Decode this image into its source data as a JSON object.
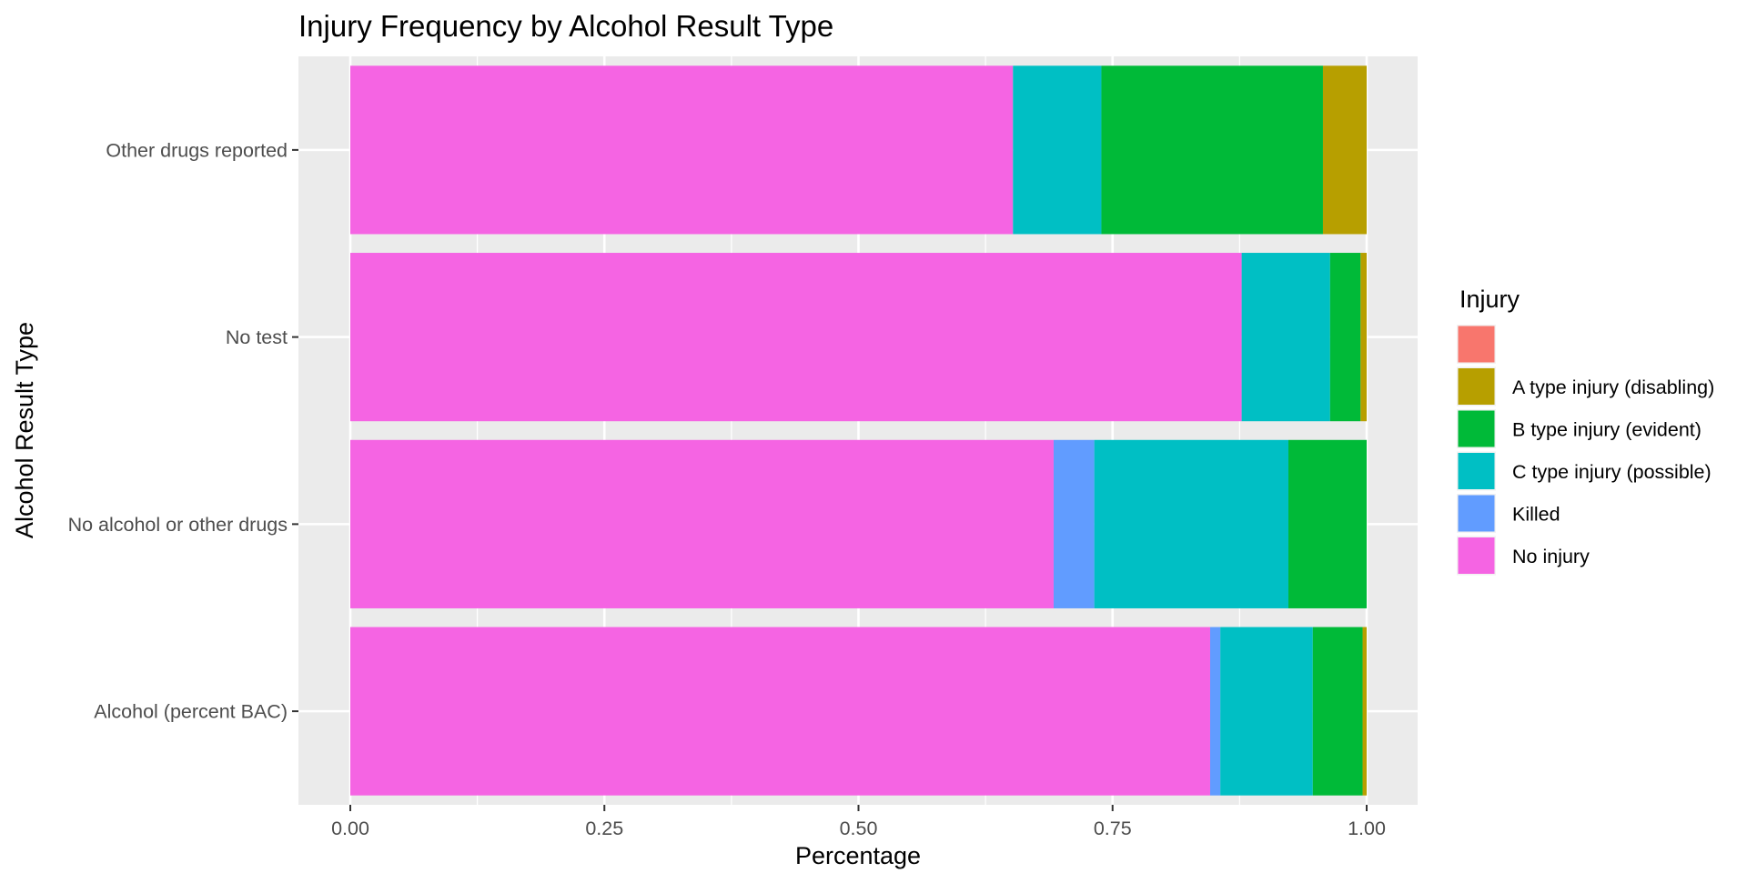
{
  "chart_data": {
    "type": "bar",
    "orientation": "horizontal",
    "stacked": "fill",
    "title": "Injury Frequency by Alcohol Result Type",
    "xlabel": "Percentage",
    "ylabel": "Alcohol Result Type",
    "xlim": [
      0,
      1
    ],
    "xticks": [
      0,
      0.25,
      0.5,
      0.75,
      1
    ],
    "xtick_labels": [
      "0.00",
      "0.25",
      "0.50",
      "0.75",
      "1.00"
    ],
    "grid": true,
    "legend_position": "right",
    "categories": [
      "Alcohol (percent BAC)",
      "No alcohol or other drugs",
      "No test",
      "Other drugs reported"
    ],
    "legend": {
      "title": "Injury",
      "entries": [
        {
          "label": "",
          "color": "#F8766D"
        },
        {
          "label": "A type injury (disabling)",
          "color": "#B79F00"
        },
        {
          "label": "B type injury (evident)",
          "color": "#00BA38"
        },
        {
          "label": "C type injury (possible)",
          "color": "#00BFC4"
        },
        {
          "label": "Killed",
          "color": "#619CFF"
        },
        {
          "label": "No injury",
          "color": "#F564E3"
        }
      ]
    },
    "series": [
      {
        "name": "No injury",
        "color": "#F564E3",
        "values": [
          0.846,
          0.692,
          0.877,
          0.652
        ]
      },
      {
        "name": "Killed",
        "color": "#619CFF",
        "values": [
          0.01,
          0.04,
          0.0,
          0.0
        ]
      },
      {
        "name": "C type injury (possible)",
        "color": "#00BFC4",
        "values": [
          0.091,
          0.191,
          0.087,
          0.087
        ]
      },
      {
        "name": "B type injury (evident)",
        "color": "#00BA38",
        "values": [
          0.049,
          0.077,
          0.03,
          0.218
        ]
      },
      {
        "name": "A type injury (disabling)",
        "color": "#B79F00",
        "values": [
          0.004,
          0.0,
          0.006,
          0.043
        ]
      },
      {
        "name": "",
        "color": "#F8766D",
        "values": [
          0.0,
          0.0,
          0.0,
          0.0
        ]
      }
    ]
  }
}
